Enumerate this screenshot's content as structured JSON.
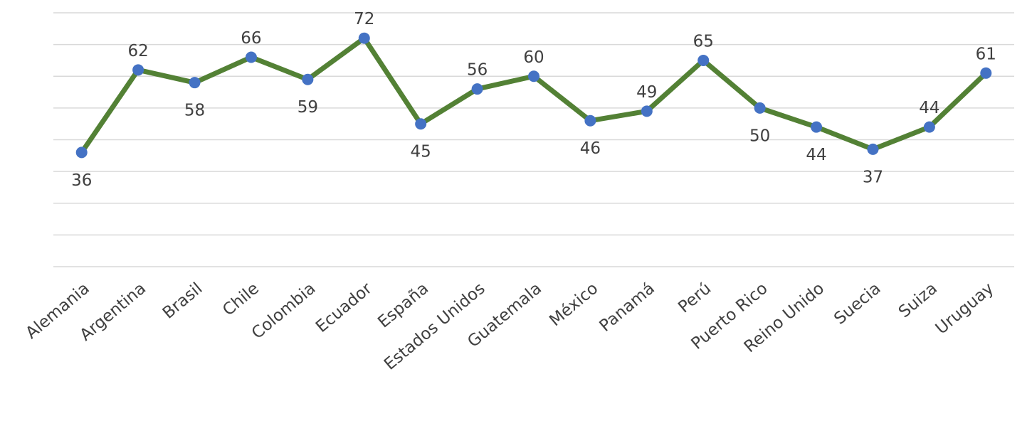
{
  "chart_data": {
    "type": "line",
    "categories": [
      "Alemania",
      "Argentina",
      "Brasil",
      "Chile",
      "Colombia",
      "Ecuador",
      "España",
      "Estados Unidos",
      "Guatemala",
      "México",
      "Panamá",
      "Perú",
      "Puerto Rico",
      "Reino Unido",
      "Suecia",
      "Suiza",
      "Uruguay"
    ],
    "series": [
      {
        "color": "#538135",
        "marker_color": "#4472c4",
        "values": [
          36,
          62,
          58,
          66,
          59,
          72,
          45,
          56,
          60,
          46,
          49,
          65,
          50,
          44,
          37,
          44,
          61
        ]
      }
    ],
    "ylim": [
      0,
      80
    ],
    "yticks": [
      0,
      10,
      20,
      30,
      40,
      50,
      60,
      70,
      80
    ],
    "grid": true,
    "data_labels": true
  }
}
